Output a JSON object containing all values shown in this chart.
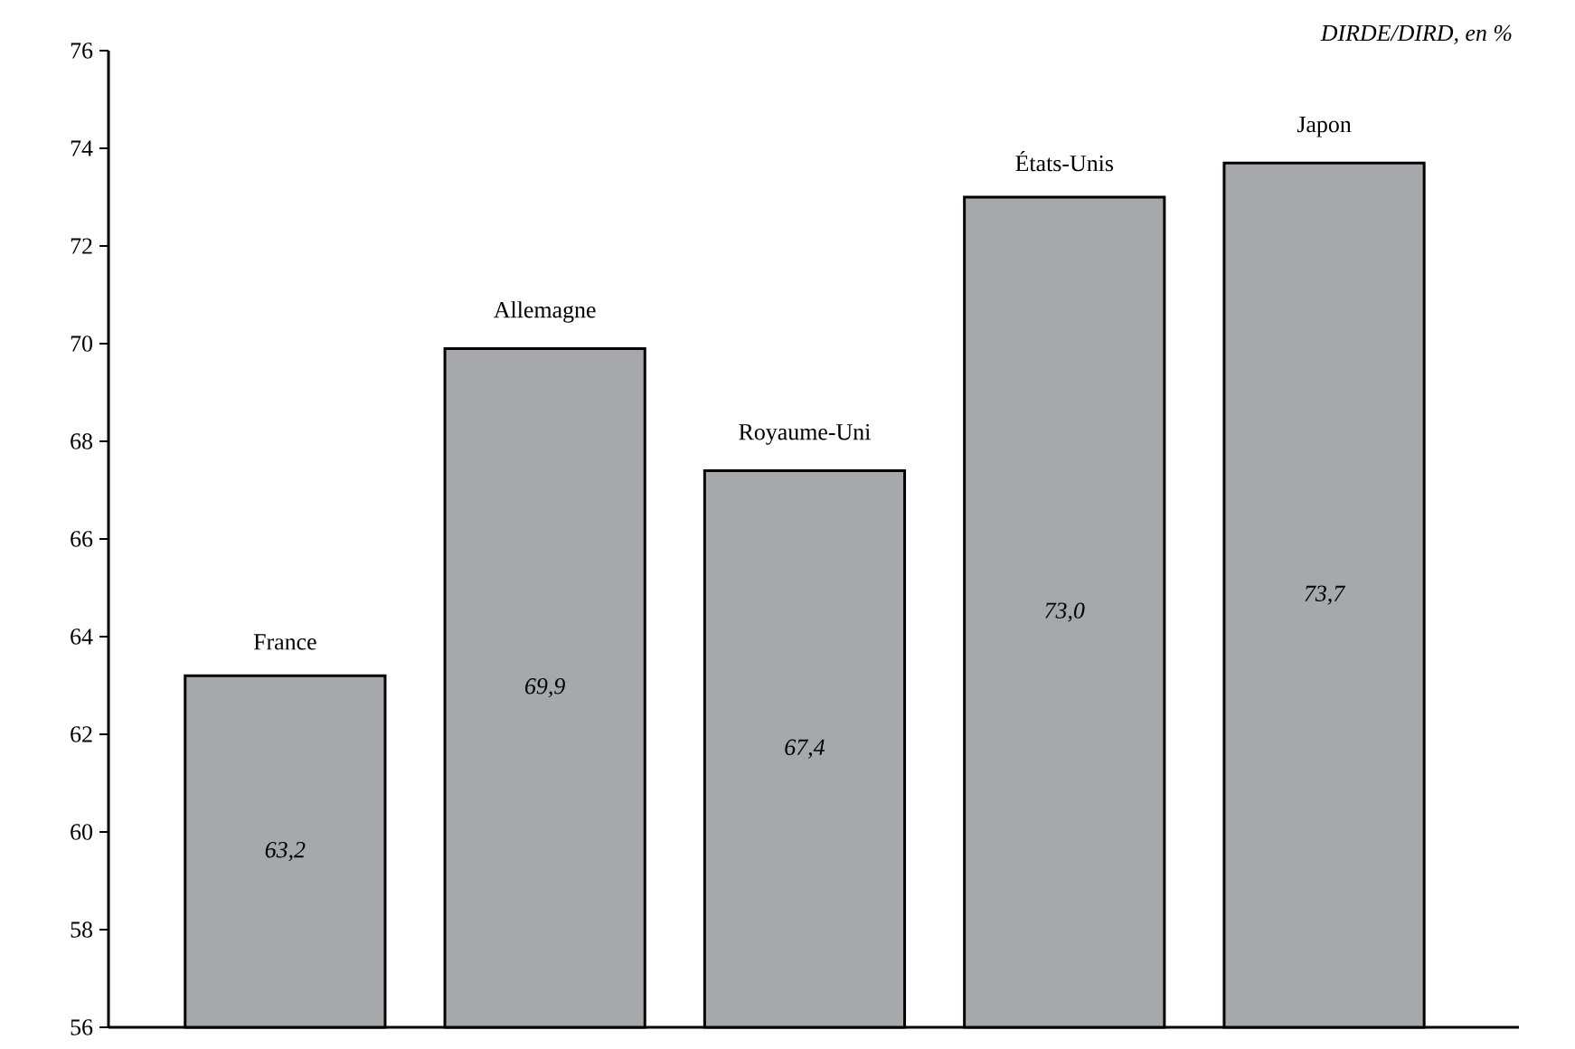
{
  "chart_data": {
    "type": "bar",
    "ylabel": "DIRDE/DIRD, en %",
    "categories": [
      "France",
      "Allemagne",
      "Royaume-Uni",
      "États-Unis",
      "Japon"
    ],
    "values": [
      63.2,
      69.9,
      67.4,
      73.0,
      73.7
    ],
    "value_labels": [
      "63,2",
      "69,9",
      "67,4",
      "73,0",
      "73,7"
    ],
    "color": "#a7a8ab",
    "ylim": [
      56,
      76
    ],
    "yticks": [
      56,
      58,
      60,
      62,
      64,
      66,
      68,
      70,
      72,
      74,
      76
    ],
    "grid": false
  }
}
